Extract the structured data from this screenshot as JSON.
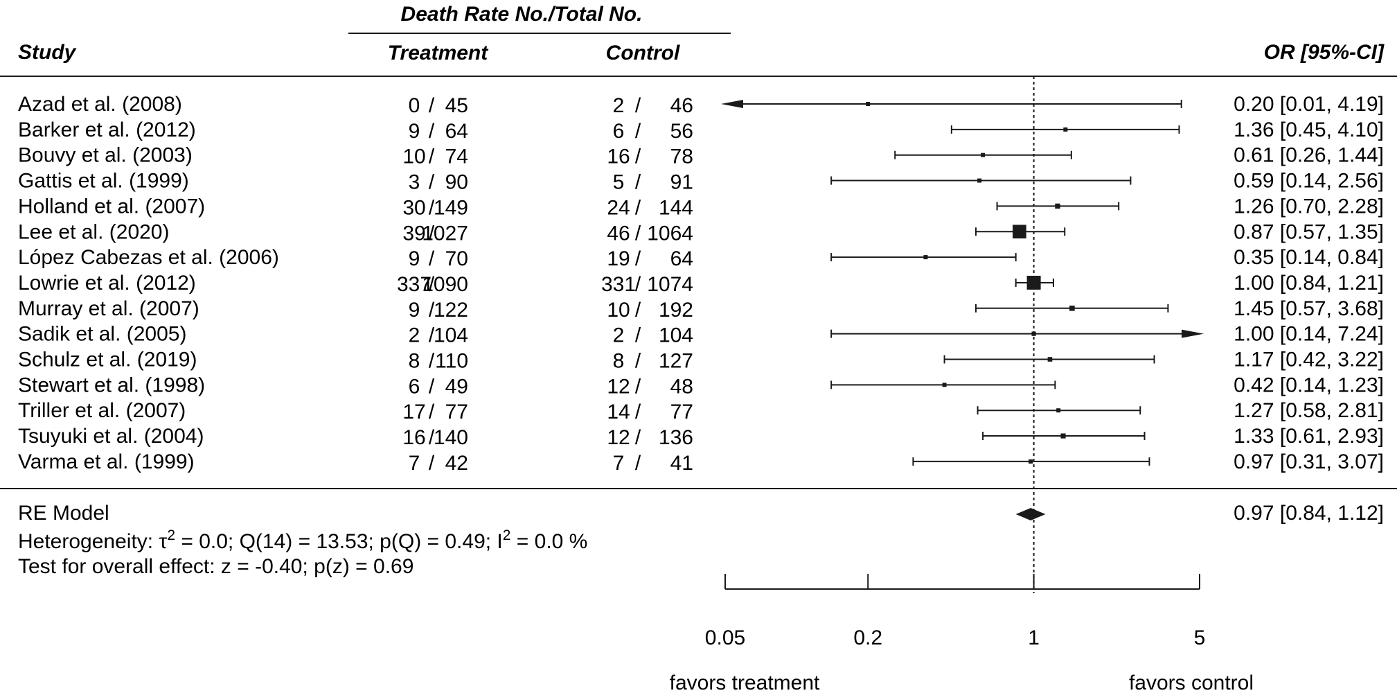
{
  "header": {
    "group_title": "Death Rate No./Total No.",
    "study": "Study",
    "treatment": "Treatment",
    "control": "Control",
    "effect": "OR [95%-CI]"
  },
  "chart_data": {
    "type": "forest",
    "measure": "OR",
    "x_scale": "log",
    "xlim": [
      0.05,
      5
    ],
    "x_ticks": [
      0.05,
      0.2,
      1,
      5
    ],
    "x_tick_labels": [
      "0.05",
      "0.2",
      "1",
      "5"
    ],
    "reference_line": 1,
    "studies": [
      {
        "study": "Azad et al. (2008)",
        "t_events": 0,
        "t_total": 45,
        "c_events": 2,
        "c_total": 46,
        "or": 0.2,
        "lo": 0.01,
        "hi": 4.19,
        "label": "0.20 [0.01, 4.19]"
      },
      {
        "study": "Barker et al. (2012)",
        "t_events": 9,
        "t_total": 64,
        "c_events": 6,
        "c_total": 56,
        "or": 1.36,
        "lo": 0.45,
        "hi": 4.1,
        "label": "1.36 [0.45, 4.10]"
      },
      {
        "study": "Bouvy et al. (2003)",
        "t_events": 10,
        "t_total": 74,
        "c_events": 16,
        "c_total": 78,
        "or": 0.61,
        "lo": 0.26,
        "hi": 1.44,
        "label": "0.61 [0.26, 1.44]"
      },
      {
        "study": "Gattis et al. (1999)",
        "t_events": 3,
        "t_total": 90,
        "c_events": 5,
        "c_total": 91,
        "or": 0.59,
        "lo": 0.14,
        "hi": 2.56,
        "label": "0.59 [0.14, 2.56]"
      },
      {
        "study": "Holland et al. (2007)",
        "t_events": 30,
        "t_total": 149,
        "c_events": 24,
        "c_total": 144,
        "or": 1.26,
        "lo": 0.7,
        "hi": 2.28,
        "label": "1.26 [0.70, 2.28]"
      },
      {
        "study": "Lee et al. (2020)",
        "t_events": 39,
        "t_total": 1027,
        "c_events": 46,
        "c_total": 1064,
        "or": 0.87,
        "lo": 0.57,
        "hi": 1.35,
        "label": "0.87 [0.57, 1.35]"
      },
      {
        "study": "López Cabezas et al. (2006)",
        "t_events": 9,
        "t_total": 70,
        "c_events": 19,
        "c_total": 64,
        "or": 0.35,
        "lo": 0.14,
        "hi": 0.84,
        "label": "0.35 [0.14, 0.84]"
      },
      {
        "study": "Lowrie et al. (2012)",
        "t_events": 337,
        "t_total": 1090,
        "c_events": 331,
        "c_total": 1074,
        "or": 1.0,
        "lo": 0.84,
        "hi": 1.21,
        "label": "1.00 [0.84, 1.21]"
      },
      {
        "study": "Murray et al. (2007)",
        "t_events": 9,
        "t_total": 122,
        "c_events": 10,
        "c_total": 192,
        "or": 1.45,
        "lo": 0.57,
        "hi": 3.68,
        "label": "1.45 [0.57, 3.68]"
      },
      {
        "study": "Sadik et al. (2005)",
        "t_events": 2,
        "t_total": 104,
        "c_events": 2,
        "c_total": 104,
        "or": 1.0,
        "lo": 0.14,
        "hi": 7.24,
        "label": "1.00 [0.14, 7.24]"
      },
      {
        "study": "Schulz et al. (2019)",
        "t_events": 8,
        "t_total": 110,
        "c_events": 8,
        "c_total": 127,
        "or": 1.17,
        "lo": 0.42,
        "hi": 3.22,
        "label": "1.17 [0.42, 3.22]"
      },
      {
        "study": "Stewart et al. (1998)",
        "t_events": 6,
        "t_total": 49,
        "c_events": 12,
        "c_total": 48,
        "or": 0.42,
        "lo": 0.14,
        "hi": 1.23,
        "label": "0.42 [0.14, 1.23]"
      },
      {
        "study": "Triller et al. (2007)",
        "t_events": 17,
        "t_total": 77,
        "c_events": 14,
        "c_total": 77,
        "or": 1.27,
        "lo": 0.58,
        "hi": 2.81,
        "label": "1.27 [0.58, 2.81]"
      },
      {
        "study": "Tsuyuki et al. (2004)",
        "t_events": 16,
        "t_total": 140,
        "c_events": 12,
        "c_total": 136,
        "or": 1.33,
        "lo": 0.61,
        "hi": 2.93,
        "label": "1.33 [0.61, 2.93]"
      },
      {
        "study": "Varma et al. (1999)",
        "t_events": 7,
        "t_total": 42,
        "c_events": 7,
        "c_total": 41,
        "or": 0.97,
        "lo": 0.31,
        "hi": 3.07,
        "label": "0.97 [0.31, 3.07]"
      }
    ],
    "summary": {
      "label": "RE Model",
      "or": 0.97,
      "lo": 0.84,
      "hi": 1.12,
      "text": "0.97 [0.84, 1.12]",
      "heterogeneity_prefix": "Heterogeneity: τ",
      "heterogeneity_mid": " = 0.0; Q(14) = 13.53; p(Q) = 0.49; I",
      "heterogeneity_suffix": " = 0.0 %",
      "superscript": "2",
      "overall_effect": "Test for overall effect: z = -0.40; p(z) = 0.69"
    },
    "favors_left": "favors treatment",
    "favors_right": "favors control"
  }
}
